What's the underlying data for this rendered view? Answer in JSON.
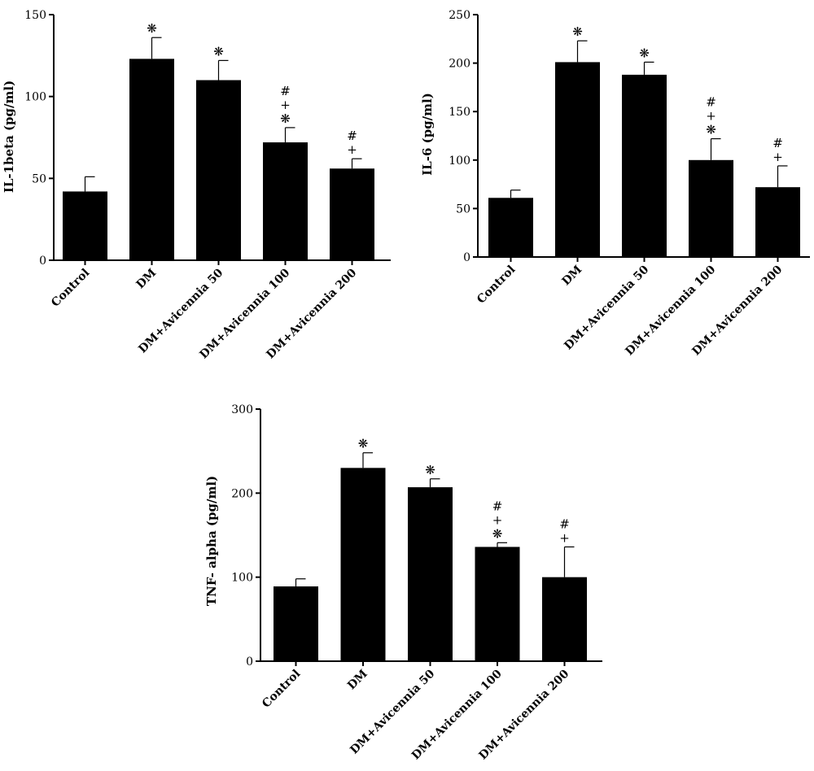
{
  "chart_data": [
    {
      "type": "bar",
      "title": "",
      "ylabel": "IL-1beta (pg/ml)",
      "xlabel": "",
      "ylim": [
        0,
        150
      ],
      "yticks": [
        0,
        50,
        100,
        150
      ],
      "categories": [
        "Control",
        "DM",
        "DM+Avicennia 50",
        "DM+Avicennia 100",
        "DM+Avicennia 200"
      ],
      "values": [
        42,
        123,
        110,
        72,
        56
      ],
      "errors": [
        9,
        13,
        12,
        9,
        6
      ],
      "significance": [
        [],
        [
          "❋"
        ],
        [
          "❋"
        ],
        [
          "#",
          "+",
          "❋"
        ],
        [
          "#",
          "+"
        ]
      ],
      "bar_color": "#000000"
    },
    {
      "type": "bar",
      "title": "",
      "ylabel": "IL-6 (pg/ml)",
      "xlabel": "",
      "ylim": [
        0,
        250
      ],
      "yticks": [
        0,
        50,
        100,
        150,
        200,
        250
      ],
      "categories": [
        "Control",
        "DM",
        "DM+Avicennia 50",
        "DM+Avicennia 100",
        "DM+Avicennia 200"
      ],
      "values": [
        61,
        201,
        188,
        100,
        72
      ],
      "errors": [
        8,
        22,
        13,
        22,
        22
      ],
      "significance": [
        [],
        [
          "❋"
        ],
        [
          "❋"
        ],
        [
          "#",
          "+",
          "❋"
        ],
        [
          "#",
          "+"
        ]
      ],
      "bar_color": "#000000"
    },
    {
      "type": "bar",
      "title": "",
      "ylabel": "TNF- alpha (pg/ml)",
      "xlabel": "",
      "ylim": [
        0,
        300
      ],
      "yticks": [
        0,
        100,
        200,
        300
      ],
      "categories": [
        "Control",
        "DM",
        "DM+Avicennia 50",
        "DM+Avicennia 100",
        "DM+Avicennia 200"
      ],
      "values": [
        89,
        230,
        207,
        136,
        100
      ],
      "errors": [
        9,
        18,
        10,
        5,
        36
      ],
      "significance": [
        [],
        [
          "❋"
        ],
        [
          "❋"
        ],
        [
          "#",
          "+",
          "❋"
        ],
        [
          "#",
          "+"
        ]
      ],
      "bar_color": "#000000"
    }
  ]
}
